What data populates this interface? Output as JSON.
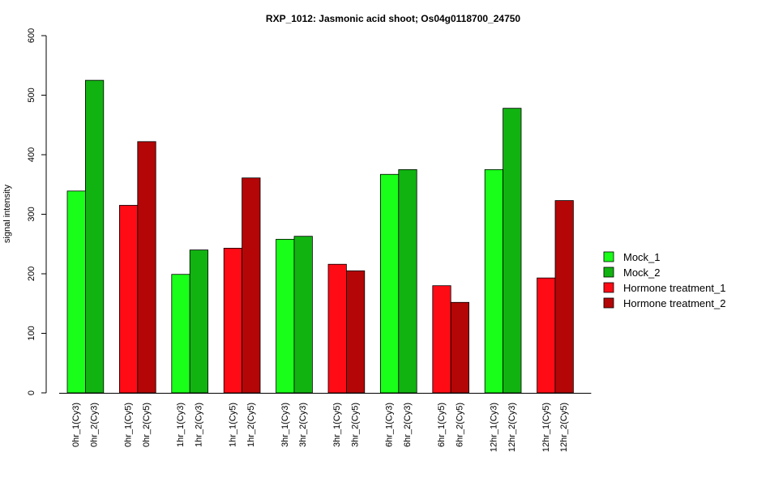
{
  "chart_data": {
    "type": "bar",
    "title": "RXP_1012: Jasmonic acid shoot; Os04g0118700_24750",
    "ylabel": "signal intensity",
    "xlabel": "",
    "ylim": [
      0,
      600
    ],
    "yticks": [
      0,
      100,
      200,
      300,
      400,
      500,
      600
    ],
    "grid": false,
    "legend_position": "right",
    "legend": [
      {
        "name": "Mock_1",
        "color": "#1aff1a"
      },
      {
        "name": "Mock_2",
        "color": "#11b311"
      },
      {
        "name": "Hormone treatment_1",
        "color": "#ff0b16"
      },
      {
        "name": "Hormone treatment_2",
        "color": "#b40606"
      }
    ],
    "bars": [
      {
        "label": "0hr_1(Cy3)",
        "value": 339,
        "series": "Mock_1",
        "color": "#1aff1a"
      },
      {
        "label": "0hr_2(Cy3)",
        "value": 525,
        "series": "Mock_2",
        "color": "#11b311"
      },
      {
        "label": "0hr_1(Cy5)",
        "value": 315,
        "series": "Hormone treatment_1",
        "color": "#ff0b16"
      },
      {
        "label": "0hr_2(Cy5)",
        "value": 422,
        "series": "Hormone treatment_2",
        "color": "#b40606"
      },
      {
        "label": "1hr_1(Cy3)",
        "value": 199,
        "series": "Mock_1",
        "color": "#1aff1a"
      },
      {
        "label": "1hr_2(Cy3)",
        "value": 240,
        "series": "Mock_2",
        "color": "#11b311"
      },
      {
        "label": "1hr_1(Cy5)",
        "value": 243,
        "series": "Hormone treatment_1",
        "color": "#ff0b16"
      },
      {
        "label": "1hr_2(Cy5)",
        "value": 361,
        "series": "Hormone treatment_2",
        "color": "#b40606"
      },
      {
        "label": "3hr_1(Cy3)",
        "value": 258,
        "series": "Mock_1",
        "color": "#1aff1a"
      },
      {
        "label": "3hr_2(Cy3)",
        "value": 263,
        "series": "Mock_2",
        "color": "#11b311"
      },
      {
        "label": "3hr_1(Cy5)",
        "value": 216,
        "series": "Hormone treatment_1",
        "color": "#ff0b16"
      },
      {
        "label": "3hr_2(Cy5)",
        "value": 205,
        "series": "Hormone treatment_2",
        "color": "#b40606"
      },
      {
        "label": "6hr_1(Cy3)",
        "value": 367,
        "series": "Mock_1",
        "color": "#1aff1a"
      },
      {
        "label": "6hr_2(Cy3)",
        "value": 375,
        "series": "Mock_2",
        "color": "#11b311"
      },
      {
        "label": "6hr_1(Cy5)",
        "value": 180,
        "series": "Hormone treatment_1",
        "color": "#ff0b16"
      },
      {
        "label": "6hr_2(Cy5)",
        "value": 152,
        "series": "Hormone treatment_2",
        "color": "#b40606"
      },
      {
        "label": "12hr_1(Cy3)",
        "value": 375,
        "series": "Mock_1",
        "color": "#1aff1a"
      },
      {
        "label": "12hr_2(Cy3)",
        "value": 478,
        "series": "Mock_2",
        "color": "#11b311"
      },
      {
        "label": "12hr_1(Cy5)",
        "value": 193,
        "series": "Hormone treatment_1",
        "color": "#ff0b16"
      },
      {
        "label": "12hr_2(Cy5)",
        "value": 323,
        "series": "Hormone treatment_2",
        "color": "#b40606"
      }
    ]
  }
}
